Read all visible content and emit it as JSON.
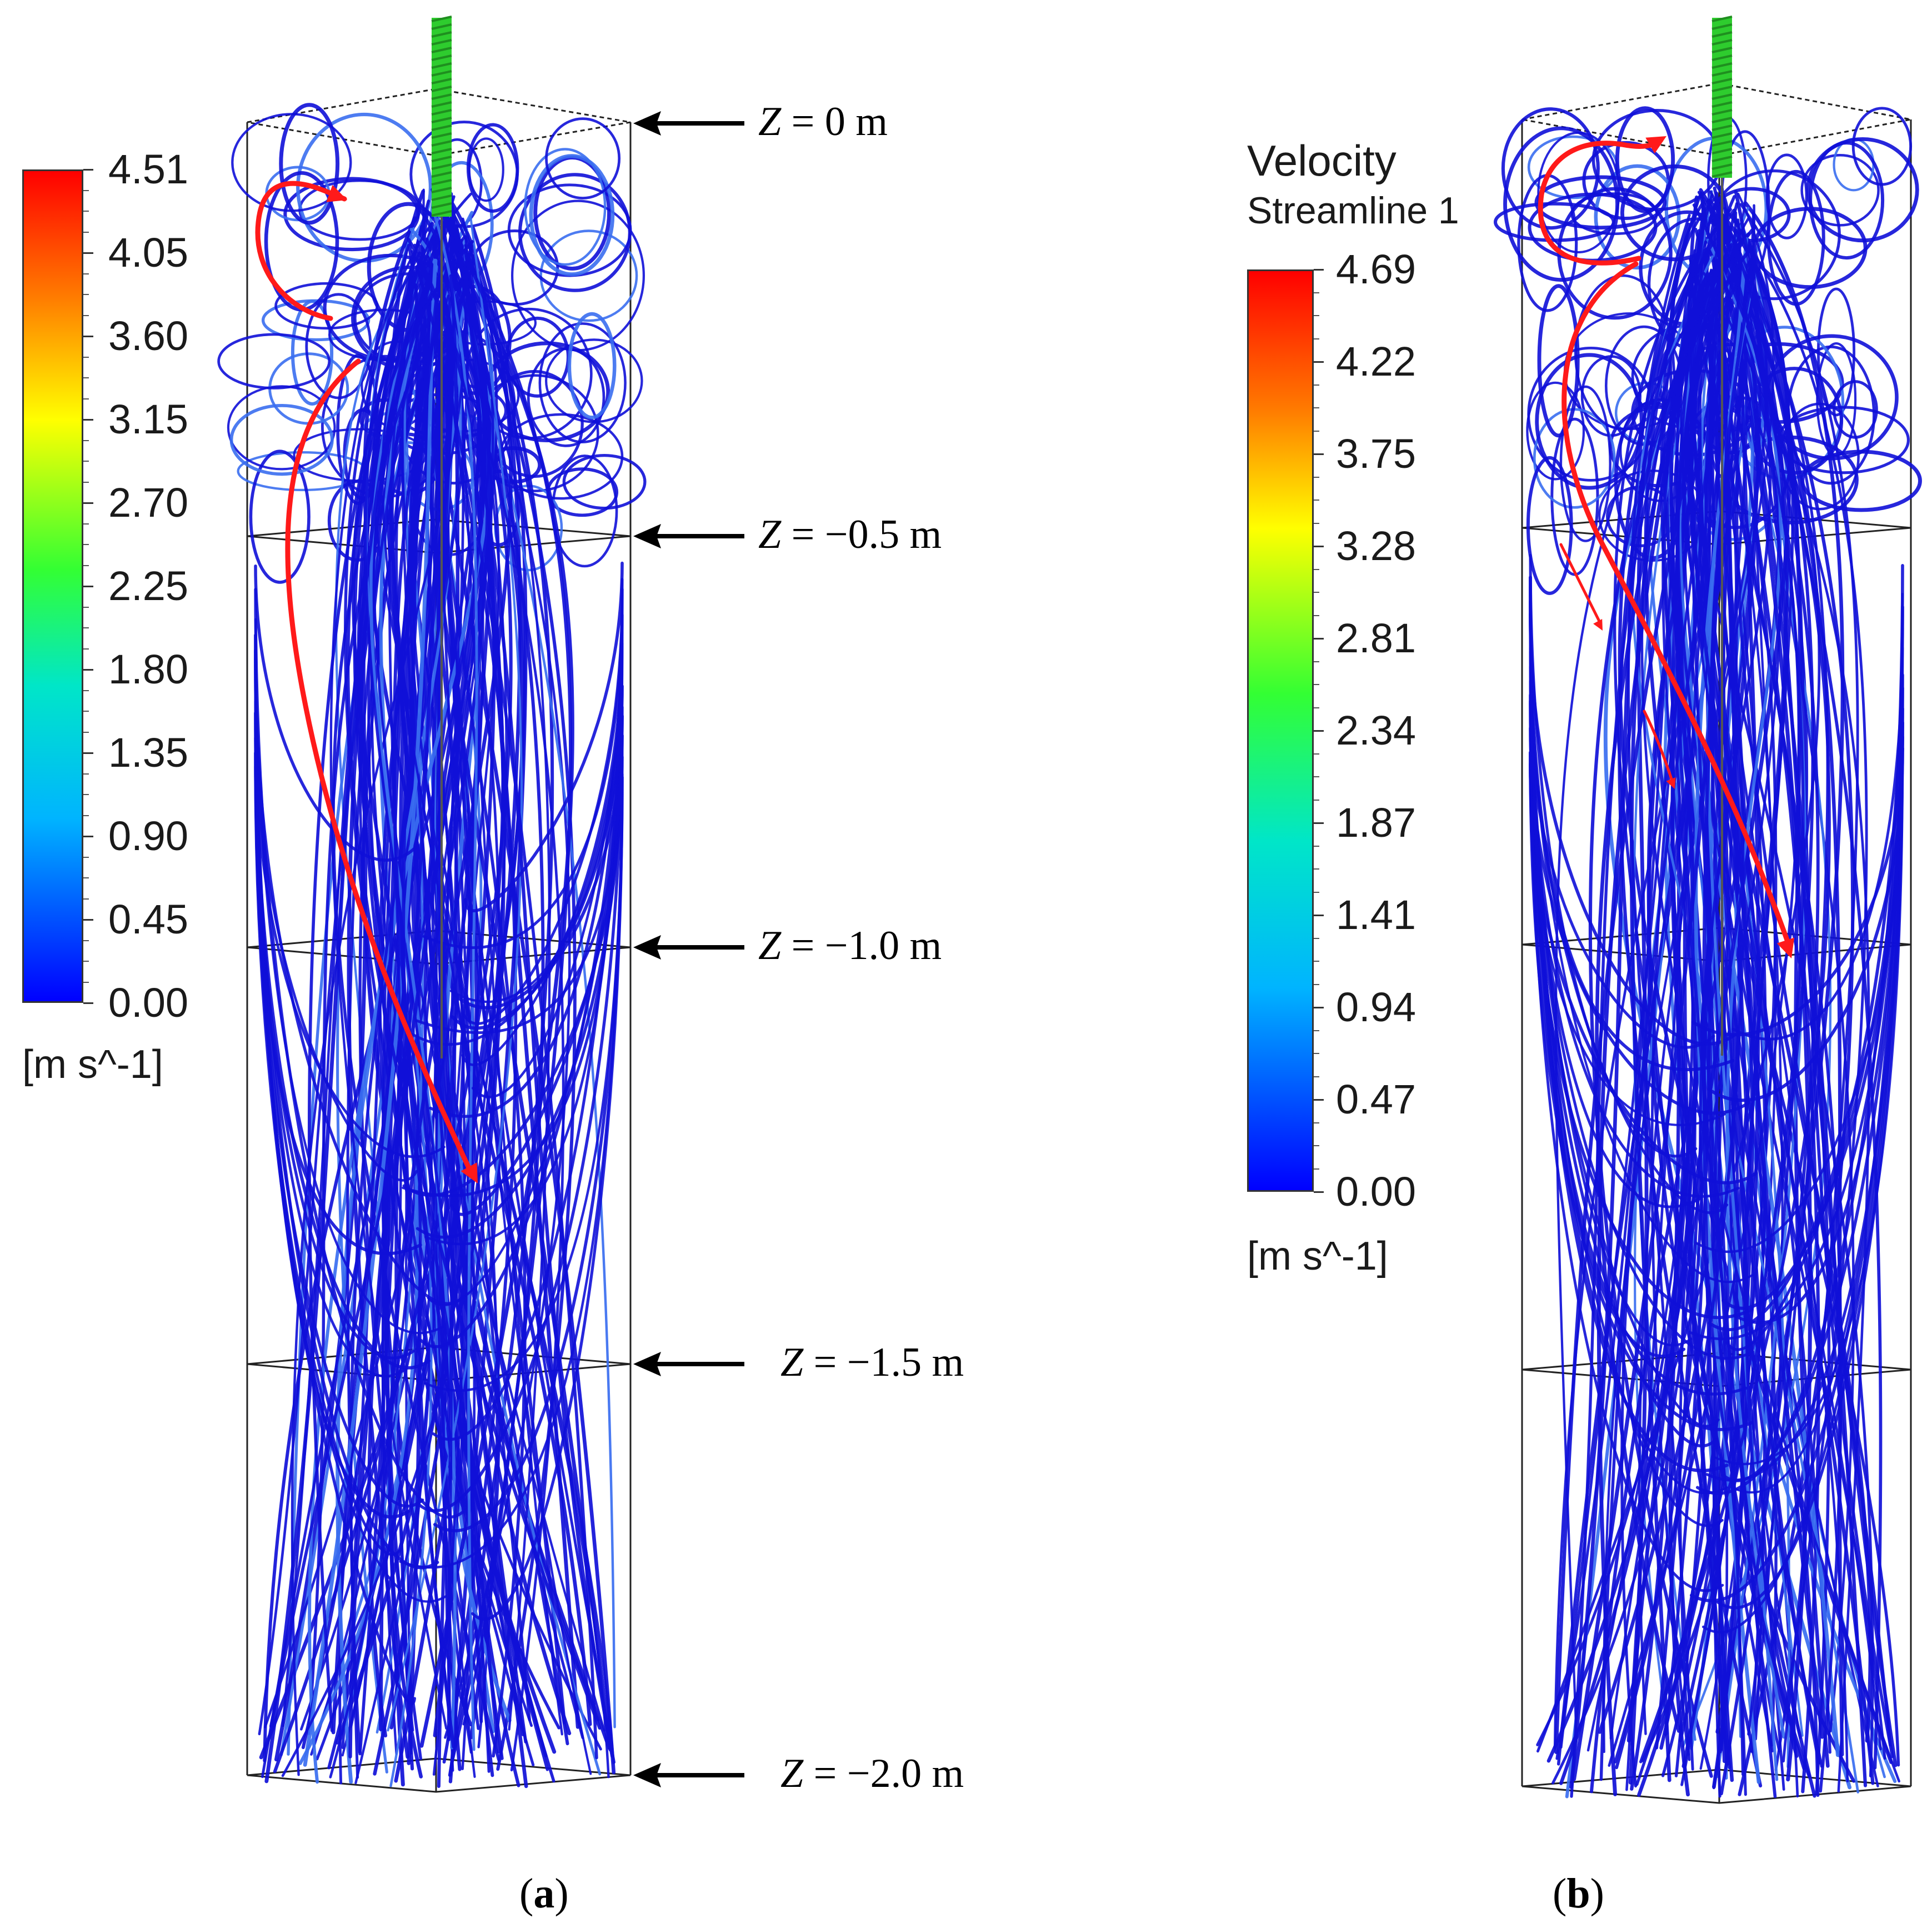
{
  "panel_a": {
    "label_open": "(",
    "label_letter": "a",
    "label_close": ")",
    "colorbar": {
      "ticks": [
        "4.51",
        "4.05",
        "3.60",
        "3.15",
        "2.70",
        "2.25",
        "1.80",
        "1.35",
        "0.90",
        "0.45",
        "0.00"
      ],
      "unit": "[m s^-1]",
      "colors": [
        "#ff0000",
        "#ff8000",
        "#ffff00",
        "#00ff00",
        "#00ffff",
        "#0000ff"
      ]
    },
    "z_levels": [
      {
        "var": "Z",
        "text": " = 0 m"
      },
      {
        "var": "Z",
        "text": " = −0.5 m"
      },
      {
        "var": "Z",
        "text": " = −1.0 m"
      },
      {
        "var": "Z",
        "text": " = −1.5 m"
      },
      {
        "var": "Z",
        "text": " = −2.0 m"
      }
    ]
  },
  "panel_b": {
    "label_open": "(",
    "label_letter": "b",
    "label_close": ")",
    "legend_title": "Velocity",
    "legend_subtitle": "Streamline 1",
    "colorbar": {
      "ticks": [
        "4.69",
        "4.22",
        "3.75",
        "3.28",
        "2.81",
        "2.34",
        "1.87",
        "1.41",
        "0.94",
        "0.47",
        "0.00"
      ],
      "unit": "[m s^-1]",
      "colors": [
        "#ff0000",
        "#ff8000",
        "#ffff00",
        "#00ff00",
        "#00ffff",
        "#0000ff"
      ]
    }
  },
  "style": {
    "streamline_color": "#1010d8",
    "streamline_light": "#3a6ef0",
    "arrow_color": "#ff1a1a",
    "shaft_color": "#2ecc2e"
  }
}
